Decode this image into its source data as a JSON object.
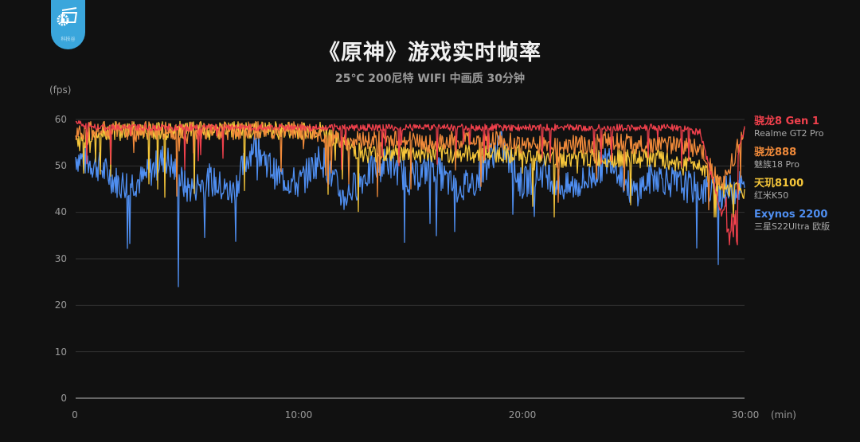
{
  "logo": {
    "text": "科技谷"
  },
  "header": {
    "title": "《原神》游戏实时帧率",
    "subtitle": "25℃ 200尼特 WIFI 中画质 30分钟"
  },
  "axes": {
    "y_unit": "(fps)",
    "x_unit": "(min)",
    "y_ticks": [
      "60",
      "50",
      "40",
      "30",
      "20",
      "10",
      "0"
    ],
    "x_ticks": [
      "0",
      "10:00",
      "20:00",
      "30:00"
    ]
  },
  "legend": [
    {
      "chip": "骁龙8 Gen 1",
      "device": "Realme GT2 Pro",
      "color": "#f0404c"
    },
    {
      "chip": "骁龙888",
      "device": "魅族18 Pro",
      "color": "#f08a3a"
    },
    {
      "chip": "天玑8100",
      "device": "红米K50",
      "color": "#f5c63a"
    },
    {
      "chip": "Exynos 2200",
      "device": "三星S22Ultra 欧版",
      "color": "#4f8ef0"
    }
  ],
  "chart_data": {
    "type": "line",
    "title": "《原神》游戏实时帧率",
    "subtitle": "25℃ 200尼特 WIFI 中画质 30分钟",
    "xlabel": "(min)",
    "ylabel": "(fps)",
    "xlim": [
      0,
      30
    ],
    "ylim": [
      0,
      60
    ],
    "y_ticks": [
      0,
      10,
      20,
      30,
      40,
      50,
      60
    ],
    "x_ticks": [
      "0",
      "10:00",
      "20:00",
      "30:00"
    ],
    "grid": true,
    "legend_position": "right",
    "x": [
      0,
      1,
      2,
      3,
      4,
      5,
      6,
      7,
      8,
      9,
      10,
      11,
      12,
      13,
      14,
      15,
      16,
      17,
      18,
      19,
      20,
      21,
      22,
      23,
      24,
      25,
      26,
      27,
      28,
      29,
      30
    ],
    "series": [
      {
        "name": "骁龙8 Gen 1 (Realme GT2 Pro)",
        "color": "#f0404c",
        "values": [
          60,
          59,
          59,
          59,
          59,
          59,
          59,
          59,
          59,
          59,
          59,
          59,
          59,
          59,
          59,
          59,
          59,
          59,
          59,
          59,
          59,
          59,
          59,
          59,
          59,
          59,
          59,
          59,
          58,
          40,
          59
        ],
        "min": 33,
        "max": 60
      },
      {
        "name": "骁龙888 (魅族18 Pro)",
        "color": "#f08a3a",
        "values": [
          58,
          58,
          58,
          58,
          58,
          58,
          58,
          58,
          58,
          58,
          58,
          57,
          56,
          56,
          56,
          56,
          55,
          56,
          56,
          56,
          55,
          55,
          55,
          55,
          56,
          55,
          55,
          55,
          54,
          46,
          58
        ],
        "min": 38,
        "max": 60
      },
      {
        "name": "天玑8100 (红米K50)",
        "color": "#f5c63a",
        "values": [
          55,
          58,
          58,
          58,
          58,
          58,
          58,
          58,
          58,
          58,
          58,
          58,
          55,
          53,
          53,
          53,
          53,
          53,
          53,
          53,
          53,
          52,
          52,
          52,
          52,
          52,
          52,
          51,
          51,
          45,
          45
        ],
        "min": 39,
        "max": 60
      },
      {
        "name": "Exynos 2200 (三星S22Ultra 欧版)",
        "color": "#4f8ef0",
        "values": [
          52,
          50,
          46,
          47,
          52,
          45,
          47,
          44,
          55,
          48,
          46,
          52,
          43,
          48,
          51,
          47,
          50,
          45,
          47,
          55,
          46,
          49,
          45,
          47,
          52,
          44,
          48,
          46,
          45,
          44,
          46
        ],
        "min": 24,
        "max": 57
      }
    ]
  }
}
